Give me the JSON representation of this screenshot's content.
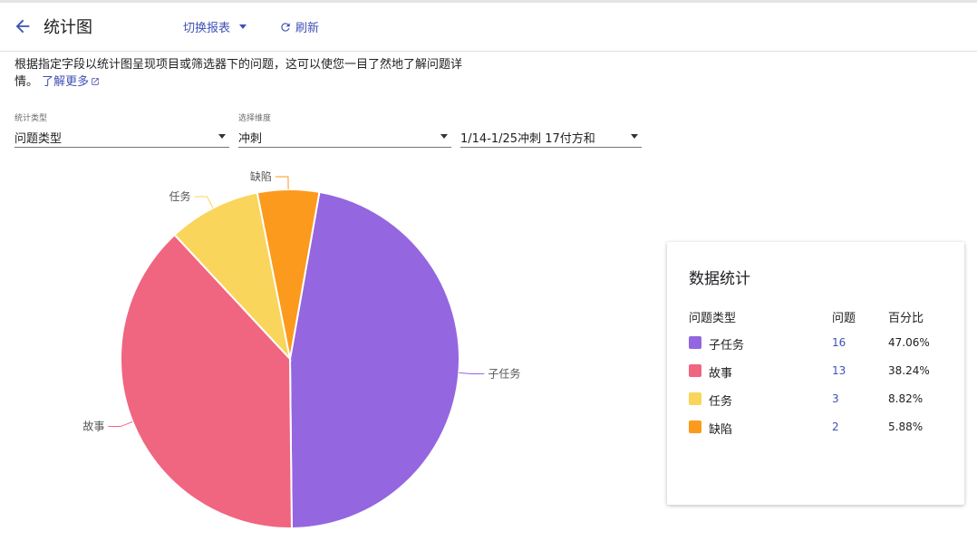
{
  "header": {
    "title": "统计图",
    "switch_report": "切换报表",
    "refresh": "刷新"
  },
  "description": {
    "text": "根据指定字段以统计图呈现项目或筛选器下的问题，这可以使您一目了然地了解问题详情。",
    "learn_more": "了解更多"
  },
  "filters": {
    "stat_type": {
      "label": "统计类型",
      "value": "问题类型"
    },
    "dimension": {
      "label": "选择维度",
      "value": "冲刺"
    },
    "sprint": {
      "value": "1/14-1/25冲刺 17付方和"
    }
  },
  "colors": {
    "accent": "#3f51b5",
    "子任务": "#9466e0",
    "故事": "#f0657f",
    "任务": "#fad55c",
    "缺陷": "#fb9a1c"
  },
  "chart_data": {
    "type": "pie",
    "categories": [
      "子任务",
      "故事",
      "任务",
      "缺陷"
    ],
    "values": [
      16,
      13,
      3,
      2
    ],
    "colors": [
      "#9466e0",
      "#f0657f",
      "#fad55c",
      "#fb9a1c"
    ],
    "start_angle_deg": 10
  },
  "stats": {
    "title": "数据统计",
    "headers": {
      "type": "问题类型",
      "count": "问题",
      "percent": "百分比"
    },
    "rows": [
      {
        "name": "子任务",
        "count": "16",
        "percent": "47.06%"
      },
      {
        "name": "故事",
        "count": "13",
        "percent": "38.24%"
      },
      {
        "name": "任务",
        "count": "3",
        "percent": "8.82%"
      },
      {
        "name": "缺陷",
        "count": "2",
        "percent": "5.88%"
      }
    ]
  }
}
